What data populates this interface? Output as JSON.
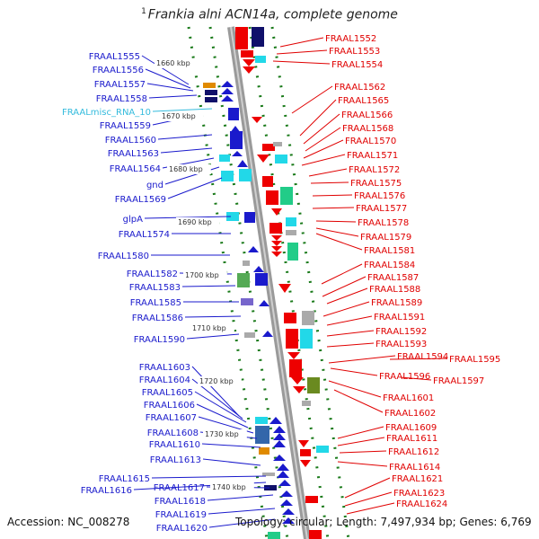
{
  "title": {
    "superscript": "1",
    "text": "Frankia alni ACN14a, complete genome"
  },
  "footer": {
    "accession": "Accession: NC_008278",
    "topology": "Topology: circular; Length: 7,497,934 bp; Genes: 6,769"
  },
  "colors": {
    "left_label": "#1a1acc",
    "right_label": "#e00000",
    "rna_label": "#33bbdd",
    "backbone": "#999999",
    "tick": "#1a7a1a"
  },
  "scale_labels": [
    "1660 kbp",
    "1670 kbp",
    "1680 kbp",
    "1690 kbp",
    "1700 kbp",
    "1710 kbp",
    "1720 kbp",
    "1730 kbp",
    "1740 kbp"
  ],
  "left_labels": [
    "FRAAL1555",
    "FRAAL1556",
    "FRAAL1557",
    "FRAAL1558",
    "FRAALmisc_RNA_10",
    "FRAAL1559",
    "FRAAL1560",
    "FRAAL1563",
    "FRAAL1564",
    "gnd",
    "FRAAL1569",
    "glpA",
    "FRAAL1574",
    "FRAAL1580",
    "FRAAL1582",
    "FRAAL1583",
    "FRAAL1585",
    "FRAAL1586",
    "FRAAL1590",
    "FRAAL1603",
    "FRAAL1604",
    "FRAAL1605",
    "FRAAL1606",
    "FRAAL1607",
    "FRAAL1608",
    "FRAAL1610",
    "FRAAL1613",
    "FRAAL1615",
    "FRAAL1616",
    "FRAAL1617",
    "FRAAL1618",
    "FRAAL1619",
    "FRAAL1620"
  ],
  "right_labels": [
    "FRAAL1552",
    "FRAAL1553",
    "FRAAL1554",
    "FRAAL1562",
    "FRAAL1565",
    "FRAAL1566",
    "FRAAL1568",
    "FRAAL1570",
    "FRAAL1571",
    "FRAAL1572",
    "FRAAL1575",
    "FRAAL1576",
    "FRAAL1577",
    "FRAAL1578",
    "FRAAL1579",
    "FRAAL1581",
    "FRAAL1584",
    "FRAAL1587",
    "FRAAL1588",
    "FRAAL1589",
    "FRAAL1591",
    "FRAAL1592",
    "FRAAL1593",
    "FRAAL1594",
    "FRAAL1595",
    "FRAAL1596",
    "FRAAL1597",
    "FRAAL1601",
    "FRAAL1602",
    "FRAAL1609",
    "FRAAL1611",
    "FRAAL1612",
    "FRAAL1614",
    "FRAAL1621",
    "FRAAL1623",
    "FRAAL1624"
  ]
}
